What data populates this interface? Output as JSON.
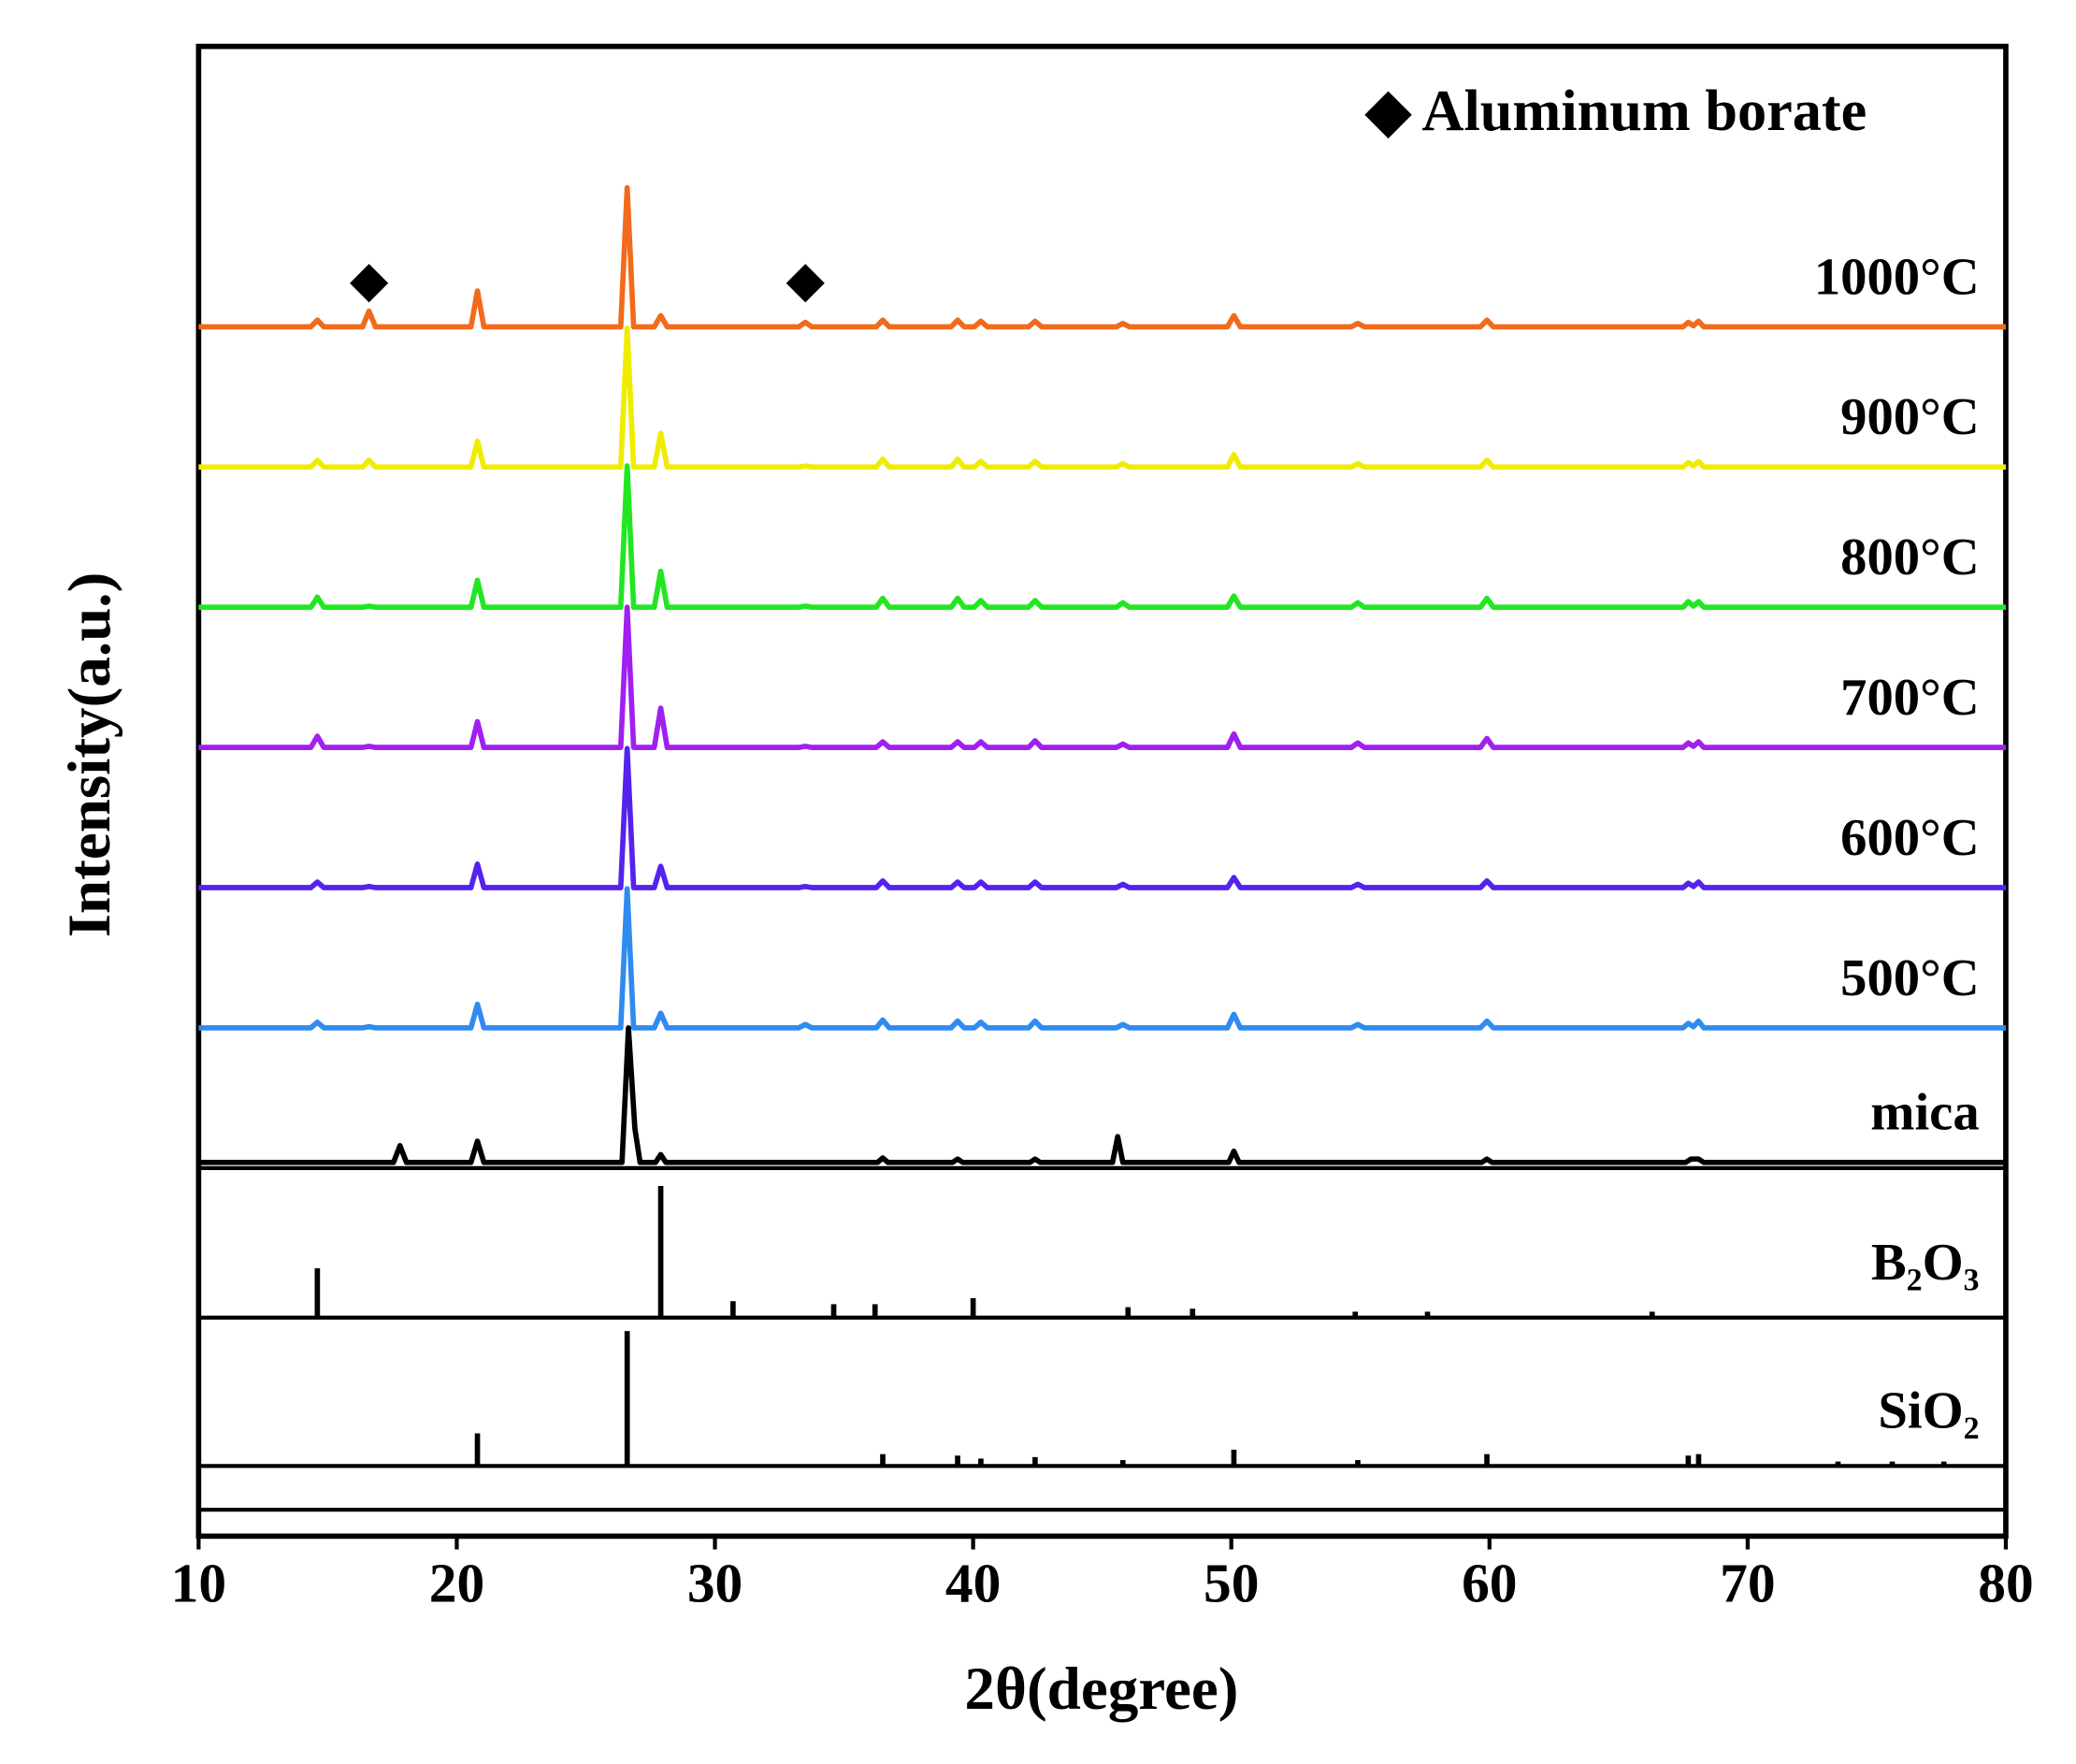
{
  "chart_data": [
    {
      "type": "line",
      "xlabel": "2θ(degree)",
      "ylabel": "Intensity(a.u.)",
      "annotation": "◆ Aluminum borate",
      "markers": {
        "symbol": "◆",
        "x": [
          16.6,
          33.5
        ]
      },
      "xlim": [
        10,
        80
      ],
      "xticks": [
        10,
        20,
        30,
        40,
        50,
        60,
        70,
        80
      ],
      "ylim": [
        0,
        100
      ],
      "series": [
        {
          "name": "1000°C",
          "color": "#f26a1b",
          "x": [
            10,
            14.35,
            14.6,
            14.85,
            16.35,
            16.6,
            16.85,
            20.55,
            20.8,
            21.05,
            26.35,
            26.6,
            26.85,
            27.65,
            27.9,
            28.15,
            33.25,
            33.5,
            33.75,
            36.25,
            36.5,
            36.75,
            39.15,
            39.4,
            39.65,
            40.05,
            40.3,
            40.55,
            42.15,
            42.4,
            42.65,
            45.55,
            45.8,
            46.05,
            49.85,
            50.1,
            50.35,
            54.65,
            54.9,
            55.15,
            59.65,
            59.9,
            60.15,
            67.5,
            67.7,
            67.9,
            68.1,
            68.3,
            80
          ],
          "values": [
            75,
            75,
            75.6,
            75,
            75,
            76.4,
            75,
            75,
            78.2,
            75,
            75,
            87.4,
            75,
            75,
            76,
            75,
            75,
            75.4,
            75,
            75,
            75.6,
            75,
            75,
            75.6,
            75,
            75,
            75.5,
            75,
            75,
            75.5,
            75,
            75,
            75.3,
            75,
            75,
            76,
            75,
            75,
            75.3,
            75,
            75,
            75.6,
            75,
            75,
            75.4,
            75.1,
            75.5,
            75,
            75
          ]
        },
        {
          "name": "900°C",
          "color": "#f0ec00",
          "x": [
            10,
            14.35,
            14.6,
            14.85,
            16.35,
            16.6,
            16.85,
            20.55,
            20.8,
            21.05,
            26.35,
            26.6,
            26.85,
            27.65,
            27.9,
            28.15,
            33.25,
            33.5,
            33.75,
            36.25,
            36.5,
            36.75,
            39.15,
            39.4,
            39.65,
            40.05,
            40.3,
            40.55,
            42.15,
            42.4,
            42.65,
            45.55,
            45.8,
            46.05,
            49.85,
            50.1,
            50.35,
            54.65,
            54.9,
            55.15,
            59.65,
            59.9,
            60.15,
            67.5,
            67.7,
            67.9,
            68.1,
            68.3,
            80
          ],
          "values": [
            62.5,
            62.5,
            63.1,
            62.5,
            62.5,
            63.1,
            62.5,
            62.5,
            64.8,
            62.5,
            62.5,
            74.9,
            62.5,
            62.5,
            65.5,
            62.5,
            62.5,
            62.6,
            62.5,
            62.5,
            63.2,
            62.5,
            62.5,
            63.2,
            62.5,
            62.5,
            63,
            62.5,
            62.5,
            63,
            62.5,
            62.5,
            62.8,
            62.5,
            62.5,
            63.6,
            62.5,
            62.5,
            62.8,
            62.5,
            62.5,
            63.1,
            62.5,
            62.5,
            62.9,
            62.6,
            63,
            62.5,
            62.5
          ]
        },
        {
          "name": "800°C",
          "color": "#22e622",
          "x": [
            10,
            14.35,
            14.6,
            14.85,
            16.35,
            16.6,
            16.85,
            20.55,
            20.8,
            21.05,
            26.35,
            26.6,
            26.85,
            27.65,
            27.9,
            28.15,
            33.25,
            33.5,
            33.75,
            36.25,
            36.5,
            36.75,
            39.15,
            39.4,
            39.65,
            40.05,
            40.3,
            40.55,
            42.15,
            42.4,
            42.65,
            45.55,
            45.8,
            46.05,
            49.85,
            50.1,
            50.35,
            54.65,
            54.9,
            55.15,
            59.65,
            59.9,
            60.15,
            67.5,
            67.7,
            67.9,
            68.1,
            68.3,
            80
          ],
          "values": [
            50,
            50,
            50.9,
            50,
            50,
            50.1,
            50,
            50,
            52.4,
            50,
            50,
            62.6,
            50,
            50,
            53.2,
            50,
            50,
            50.1,
            50,
            50,
            50.8,
            50,
            50,
            50.8,
            50,
            50,
            50.6,
            50,
            50,
            50.6,
            50,
            50,
            50.4,
            50,
            50,
            51,
            50,
            50,
            50.4,
            50,
            50,
            50.8,
            50,
            50,
            50.5,
            50.1,
            50.5,
            50,
            50
          ]
        },
        {
          "name": "700°C",
          "color": "#a020f0",
          "x": [
            10,
            14.35,
            14.6,
            14.85,
            16.35,
            16.6,
            16.85,
            20.55,
            20.8,
            21.05,
            26.35,
            26.6,
            26.85,
            27.65,
            27.9,
            28.15,
            33.25,
            33.5,
            33.75,
            36.25,
            36.5,
            36.75,
            39.15,
            39.4,
            39.65,
            40.05,
            40.3,
            40.55,
            42.15,
            42.4,
            42.65,
            45.55,
            45.8,
            46.05,
            49.85,
            50.1,
            50.35,
            54.65,
            54.9,
            55.15,
            59.65,
            59.9,
            60.15,
            67.5,
            67.7,
            67.9,
            68.1,
            68.3,
            80
          ],
          "values": [
            37.5,
            37.5,
            38.5,
            37.5,
            37.5,
            37.6,
            37.5,
            37.5,
            39.8,
            37.5,
            37.5,
            50,
            37.5,
            37.5,
            41,
            37.5,
            37.5,
            37.6,
            37.5,
            37.5,
            38,
            37.5,
            37.5,
            38,
            37.5,
            37.5,
            38,
            37.5,
            37.5,
            38.1,
            37.5,
            37.5,
            37.8,
            37.5,
            37.5,
            38.7,
            37.5,
            37.5,
            37.9,
            37.5,
            37.5,
            38.3,
            37.5,
            37.5,
            37.9,
            37.6,
            38,
            37.5,
            37.5
          ]
        },
        {
          "name": "600°C",
          "color": "#5522ee",
          "x": [
            10,
            14.35,
            14.6,
            14.85,
            16.35,
            16.6,
            16.85,
            20.55,
            20.8,
            21.05,
            26.35,
            26.6,
            26.85,
            27.65,
            27.9,
            28.15,
            33.25,
            33.5,
            33.75,
            36.25,
            36.5,
            36.75,
            39.15,
            39.4,
            39.65,
            40.05,
            40.3,
            40.55,
            42.15,
            42.4,
            42.65,
            45.55,
            45.8,
            46.05,
            49.85,
            50.1,
            50.35,
            54.65,
            54.9,
            55.15,
            59.65,
            59.9,
            60.15,
            67.5,
            67.7,
            67.9,
            68.1,
            68.3,
            80
          ],
          "values": [
            25,
            25,
            25.5,
            25,
            25,
            25.1,
            25,
            25,
            27.1,
            25,
            25,
            37.4,
            25,
            25,
            26.9,
            25,
            25,
            25.1,
            25,
            25,
            25.6,
            25,
            25,
            25.5,
            25,
            25,
            25.5,
            25,
            25,
            25.5,
            25,
            25,
            25.3,
            25,
            25,
            25.9,
            25,
            25,
            25.3,
            25,
            25,
            25.6,
            25,
            25,
            25.4,
            25.1,
            25.5,
            25,
            25
          ]
        },
        {
          "name": "500°C",
          "color": "#2f8bf0",
          "x": [
            10,
            14.35,
            14.6,
            14.85,
            16.35,
            16.6,
            16.85,
            20.55,
            20.8,
            21.05,
            26.35,
            26.6,
            26.85,
            27.65,
            27.9,
            28.15,
            33.25,
            33.5,
            33.75,
            36.25,
            36.5,
            36.75,
            39.15,
            39.4,
            39.65,
            40.05,
            40.3,
            40.55,
            42.15,
            42.4,
            42.65,
            45.55,
            45.8,
            46.05,
            49.85,
            50.1,
            50.35,
            54.65,
            54.9,
            55.15,
            59.65,
            59.9,
            60.15,
            67.5,
            67.7,
            67.9,
            68.1,
            68.3,
            80
          ],
          "values": [
            12.5,
            12.5,
            13,
            12.5,
            12.5,
            12.6,
            12.5,
            12.5,
            14.6,
            12.5,
            12.5,
            24.9,
            12.5,
            12.5,
            13.8,
            12.5,
            12.5,
            12.8,
            12.5,
            12.5,
            13.2,
            12.5,
            12.5,
            13.1,
            12.5,
            12.5,
            13,
            12.5,
            12.5,
            13.1,
            12.5,
            12.5,
            12.8,
            12.5,
            12.5,
            13.7,
            12.5,
            12.5,
            12.8,
            12.5,
            12.5,
            13.1,
            12.5,
            12.5,
            12.9,
            12.6,
            13.1,
            12.5,
            12.5
          ]
        },
        {
          "name": "mica",
          "color": "#000000",
          "x": [
            10,
            17.55,
            17.8,
            18.05,
            20.55,
            20.8,
            21.05,
            26.4,
            26.65,
            26.9,
            27.1,
            27.7,
            27.9,
            28.1,
            36.3,
            36.5,
            36.7,
            39.2,
            39.4,
            39.6,
            42.2,
            42.4,
            42.6,
            45.4,
            45.6,
            45.8,
            49.9,
            50.1,
            50.3,
            59.7,
            59.9,
            60.1,
            67.6,
            67.8,
            68.1,
            68.3,
            80
          ],
          "values": [
            0.5,
            0.5,
            2,
            0.5,
            0.5,
            2.4,
            0.5,
            0.5,
            12.5,
            3.5,
            0.5,
            0.5,
            1.2,
            0.5,
            0.5,
            0.9,
            0.5,
            0.5,
            0.8,
            0.5,
            0.5,
            0.8,
            0.5,
            0.5,
            2.8,
            0.5,
            0.5,
            1.5,
            0.5,
            0.5,
            0.8,
            0.5,
            0.5,
            0.8,
            0.8,
            0.5,
            0.5
          ]
        }
      ]
    },
    {
      "type": "stem",
      "label": "B₂O₃",
      "color": "#000000",
      "xlim": [
        10,
        80
      ],
      "ylim": [
        0,
        100
      ],
      "x": [
        14.6,
        27.9,
        30.7,
        34.6,
        36.2,
        40.0,
        46.0,
        48.5,
        54.8,
        57.6,
        66.3
      ],
      "values": [
        33,
        88,
        11,
        9,
        9,
        13,
        7,
        6,
        4,
        4,
        4
      ]
    },
    {
      "type": "stem",
      "label": "SiO₂",
      "color": "#000000",
      "xlim": [
        10,
        80
      ],
      "ylim": [
        0,
        100
      ],
      "x": [
        20.8,
        26.6,
        36.5,
        39.4,
        40.3,
        42.4,
        45.8,
        50.1,
        54.9,
        59.9,
        67.7,
        68.1,
        73.5,
        75.6,
        77.6
      ],
      "values": [
        22,
        91,
        8,
        7,
        5,
        6,
        4,
        11,
        4,
        8,
        7,
        8,
        3,
        3,
        3
      ]
    }
  ]
}
